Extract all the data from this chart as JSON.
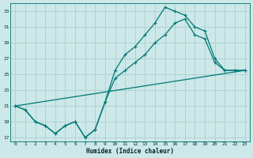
{
  "xlabel": "Humidex (Indice chaleur)",
  "bg_color": "#cce8e8",
  "grid_color": "#aad0d0",
  "line_color": "#007777",
  "xlim": [
    -0.5,
    23.5
  ],
  "ylim": [
    16.5,
    34.0
  ],
  "xticks": [
    0,
    1,
    2,
    3,
    4,
    5,
    6,
    7,
    8,
    9,
    10,
    11,
    12,
    13,
    14,
    15,
    16,
    17,
    18,
    19,
    20,
    21,
    22,
    23
  ],
  "yticks": [
    17,
    19,
    21,
    23,
    25,
    27,
    29,
    31,
    33
  ],
  "line_top": {
    "x": [
      0,
      1,
      2,
      3,
      4,
      5,
      6,
      7,
      8,
      9,
      10,
      11,
      12,
      13,
      14,
      15,
      16,
      17,
      18,
      19,
      20,
      21,
      22,
      23
    ],
    "y": [
      21.0,
      20.5,
      19.0,
      18.5,
      17.5,
      18.5,
      19.0,
      17.0,
      18.0,
      21.5,
      25.5,
      27.5,
      28.5,
      30.0,
      31.5,
      33.5,
      33.0,
      32.5,
      31.0,
      30.5,
      27.0,
      25.5,
      25.5,
      25.5
    ]
  },
  "line_mid": {
    "x": [
      0,
      1,
      2,
      3,
      4,
      5,
      6,
      7,
      8,
      9,
      10,
      11,
      12,
      13,
      14,
      15,
      16,
      17,
      18,
      19,
      20,
      21,
      22,
      23
    ],
    "y": [
      21.0,
      20.5,
      19.0,
      18.5,
      17.5,
      18.5,
      19.0,
      17.0,
      18.0,
      21.5,
      24.5,
      25.5,
      26.5,
      27.5,
      29.0,
      30.0,
      31.5,
      32.0,
      30.0,
      29.5,
      26.5,
      25.5,
      25.5,
      25.5
    ]
  },
  "line_straight": {
    "x": [
      0,
      23
    ],
    "y": [
      21.0,
      25.5
    ]
  }
}
